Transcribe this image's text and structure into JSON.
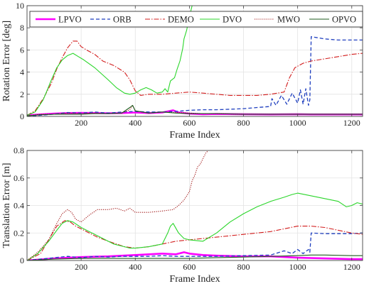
{
  "chart_data": [
    {
      "type": "line",
      "title": "",
      "xlabel": "Frame Index",
      "ylabel": "Rotation Error [deg]",
      "xlim": [
        0,
        1240
      ],
      "ylim": [
        0,
        10
      ],
      "xticks": [
        "200",
        "400",
        "600",
        "800",
        "1000",
        "1200"
      ],
      "yticks": [
        "0",
        "2",
        "4",
        "6",
        "8",
        "10"
      ],
      "grid": true,
      "legend": {
        "placement": "top",
        "entries": [
          "LPVO",
          "ORB",
          "DEMO",
          "DVO",
          "MWO",
          "OPVO"
        ]
      },
      "series": [
        {
          "name": "LPVO",
          "color": "#ff00ff",
          "dash": "solid",
          "width": 2.6,
          "x": [
            0,
            50,
            100,
            150,
            200,
            250,
            300,
            350,
            400,
            450,
            500,
            540,
            560,
            580,
            600,
            650,
            700,
            800,
            900,
            1000,
            1050,
            1100,
            1150,
            1200,
            1240
          ],
          "y": [
            0.1,
            0.18,
            0.25,
            0.3,
            0.32,
            0.3,
            0.28,
            0.3,
            0.35,
            0.3,
            0.35,
            0.55,
            0.35,
            0.3,
            0.25,
            0.2,
            0.22,
            0.2,
            0.18,
            0.2,
            0.18,
            0.18,
            0.18,
            0.18,
            0.18
          ]
        },
        {
          "name": "ORB",
          "color": "#1f3fbf",
          "dash": "5,3",
          "width": 1.3,
          "x": [
            0,
            50,
            100,
            150,
            200,
            250,
            300,
            350,
            400,
            450,
            500,
            550,
            600,
            650,
            700,
            750,
            800,
            850,
            900,
            905,
            920,
            940,
            960,
            980,
            1000,
            1010,
            1020,
            1030,
            1040,
            1045,
            1050,
            1100,
            1150,
            1200,
            1240
          ],
          "y": [
            0.0,
            0.1,
            0.2,
            0.35,
            0.3,
            0.4,
            0.3,
            0.4,
            0.45,
            0.4,
            0.4,
            0.45,
            0.55,
            0.6,
            0.6,
            0.65,
            0.7,
            0.8,
            0.9,
            1.6,
            1.0,
            1.9,
            1.1,
            2.1,
            1.2,
            2.4,
            1.1,
            2.5,
            1.0,
            1.5,
            7.2,
            7.0,
            6.9,
            6.9,
            6.9
          ]
        },
        {
          "name": "DEMO",
          "color": "#d21c1c",
          "dash": "7,2,1.5,2",
          "width": 1.1,
          "x": [
            0,
            30,
            60,
            90,
            110,
            130,
            150,
            170,
            185,
            200,
            220,
            250,
            280,
            320,
            360,
            380,
            400,
            420,
            450,
            500,
            550,
            600,
            650,
            700,
            750,
            800,
            850,
            900,
            950,
            970,
            990,
            1020,
            1050,
            1100,
            1150,
            1200,
            1240
          ],
          "y": [
            0.1,
            0.5,
            1.6,
            3.0,
            4.3,
            5.3,
            6.2,
            6.8,
            6.8,
            6.3,
            6.0,
            5.6,
            5.0,
            4.6,
            4.0,
            3.3,
            2.3,
            1.9,
            2.0,
            2.0,
            2.1,
            2.2,
            2.1,
            2.0,
            1.9,
            1.9,
            1.9,
            2.0,
            2.2,
            3.5,
            4.4,
            4.8,
            5.0,
            5.2,
            5.4,
            5.6,
            5.7
          ]
        },
        {
          "name": "DVO",
          "color": "#2bd62b",
          "dash": "solid",
          "width": 1.1,
          "x": [
            0,
            30,
            60,
            90,
            110,
            130,
            150,
            170,
            190,
            210,
            250,
            300,
            330,
            360,
            380,
            400,
            420,
            440,
            460,
            480,
            500,
            510,
            520,
            530,
            545,
            555,
            565,
            575,
            580,
            590,
            600,
            610
          ],
          "y": [
            0.1,
            0.4,
            1.5,
            3.3,
            4.4,
            5.1,
            5.5,
            5.7,
            5.4,
            5.1,
            4.4,
            3.3,
            2.6,
            2.1,
            2.0,
            2.1,
            2.4,
            2.6,
            2.4,
            2.1,
            2.2,
            2.5,
            2.2,
            3.2,
            3.5,
            4.3,
            5.0,
            6.1,
            7.0,
            7.8,
            9.0,
            10.0
          ]
        },
        {
          "name": "MWO",
          "color": "#a01515",
          "dash": "1.2,1.6",
          "width": 1.1,
          "x": [
            0,
            50,
            100,
            150,
            200,
            250,
            300,
            350,
            380,
            390,
            400,
            450,
            500,
            550,
            600,
            650,
            700,
            800,
            900,
            1000,
            1100,
            1240
          ],
          "y": [
            0.05,
            0.2,
            0.2,
            0.3,
            0.25,
            0.3,
            0.25,
            0.3,
            0.6,
            1.0,
            0.5,
            0.3,
            0.4,
            0.35,
            0.3,
            0.25,
            0.25,
            0.2,
            0.2,
            0.2,
            0.2,
            0.2
          ]
        },
        {
          "name": "OPVO",
          "color": "#1d5a1d",
          "dash": "solid",
          "width": 1.1,
          "x": [
            0,
            50,
            100,
            150,
            200,
            250,
            300,
            350,
            380,
            390,
            400,
            450,
            500,
            550,
            600,
            700,
            800,
            900,
            1000,
            1100,
            1240
          ],
          "y": [
            0.05,
            0.15,
            0.2,
            0.2,
            0.2,
            0.25,
            0.25,
            0.3,
            0.8,
            1.0,
            0.5,
            0.3,
            0.4,
            0.3,
            0.25,
            0.25,
            0.2,
            0.2,
            0.2,
            0.2,
            0.2
          ]
        }
      ]
    },
    {
      "type": "line",
      "title": "",
      "xlabel": "Frame Index",
      "ylabel": "Translation Error [m]",
      "xlim": [
        0,
        1240
      ],
      "ylim": [
        0,
        0.8
      ],
      "xticks": [
        "200",
        "400",
        "600",
        "800",
        "1000",
        "1200"
      ],
      "yticks": [
        "0",
        "0.2",
        "0.4",
        "0.6",
        "0.8"
      ],
      "grid": true,
      "series": [
        {
          "name": "LPVO",
          "color": "#ff00ff",
          "dash": "solid",
          "width": 2.6,
          "x": [
            0,
            100,
            200,
            300,
            400,
            500,
            550,
            580,
            600,
            650,
            700,
            800,
            900,
            1000,
            1100,
            1200,
            1240
          ],
          "y": [
            0.0,
            0.015,
            0.025,
            0.03,
            0.04,
            0.05,
            0.045,
            0.06,
            0.05,
            0.04,
            0.035,
            0.03,
            0.03,
            0.02,
            0.015,
            0.01,
            0.01
          ]
        },
        {
          "name": "ORB",
          "color": "#1f3fbf",
          "dash": "5,3",
          "width": 1.3,
          "x": [
            0,
            50,
            100,
            150,
            200,
            250,
            300,
            350,
            400,
            450,
            500,
            550,
            600,
            650,
            700,
            800,
            900,
            950,
            980,
            1000,
            1020,
            1040,
            1045,
            1050,
            1100,
            1150,
            1200,
            1240
          ],
          "y": [
            0.0,
            0.01,
            0.02,
            0.03,
            0.02,
            0.03,
            0.025,
            0.03,
            0.03,
            0.03,
            0.035,
            0.03,
            0.03,
            0.03,
            0.03,
            0.035,
            0.04,
            0.07,
            0.05,
            0.08,
            0.05,
            0.08,
            0.06,
            0.2,
            0.195,
            0.195,
            0.195,
            0.2
          ]
        },
        {
          "name": "DEMO",
          "color": "#d21c1c",
          "dash": "7,2,1.5,2",
          "width": 1.1,
          "x": [
            0,
            50,
            80,
            110,
            140,
            160,
            180,
            200,
            230,
            260,
            300,
            330,
            360,
            400,
            450,
            500,
            550,
            600,
            650,
            700,
            800,
            900,
            950,
            1000,
            1050,
            1100,
            1150,
            1200,
            1240
          ],
          "y": [
            0.0,
            0.05,
            0.15,
            0.25,
            0.29,
            0.28,
            0.25,
            0.23,
            0.2,
            0.17,
            0.14,
            0.12,
            0.1,
            0.09,
            0.1,
            0.12,
            0.14,
            0.15,
            0.16,
            0.17,
            0.19,
            0.21,
            0.23,
            0.25,
            0.25,
            0.24,
            0.22,
            0.2,
            0.19
          ]
        },
        {
          "name": "DVO",
          "color": "#2bd62b",
          "dash": "solid",
          "width": 1.1,
          "x": [
            0,
            40,
            80,
            110,
            130,
            150,
            170,
            200,
            240,
            280,
            320,
            360,
            380,
            400,
            450,
            500,
            520,
            530,
            540,
            560,
            580,
            600,
            650,
            700,
            750,
            800,
            850,
            900,
            950,
            980,
            1000,
            1050,
            1100,
            1150,
            1180,
            1200,
            1220,
            1240
          ],
          "y": [
            0.0,
            0.05,
            0.14,
            0.22,
            0.27,
            0.29,
            0.28,
            0.24,
            0.2,
            0.16,
            0.12,
            0.1,
            0.09,
            0.09,
            0.1,
            0.12,
            0.2,
            0.25,
            0.27,
            0.2,
            0.16,
            0.15,
            0.14,
            0.2,
            0.28,
            0.34,
            0.39,
            0.43,
            0.46,
            0.48,
            0.49,
            0.47,
            0.45,
            0.43,
            0.39,
            0.4,
            0.42,
            0.41
          ]
        },
        {
          "name": "MWO",
          "color": "#a01515",
          "dash": "1.2,1.6",
          "width": 1.1,
          "x": [
            0,
            40,
            80,
            110,
            130,
            150,
            165,
            180,
            200,
            230,
            260,
            300,
            330,
            360,
            380,
            400,
            450,
            500,
            540,
            560,
            580,
            600,
            610,
            620,
            630,
            640,
            650,
            660,
            670
          ],
          "y": [
            0.0,
            0.06,
            0.15,
            0.27,
            0.34,
            0.37,
            0.35,
            0.3,
            0.28,
            0.33,
            0.37,
            0.37,
            0.38,
            0.36,
            0.38,
            0.35,
            0.35,
            0.36,
            0.37,
            0.4,
            0.44,
            0.5,
            0.58,
            0.62,
            0.68,
            0.7,
            0.74,
            0.78,
            0.8
          ]
        },
        {
          "name": "OPVO",
          "color": "#1d5a1d",
          "dash": "solid",
          "width": 1.1,
          "x": [
            0,
            100,
            200,
            300,
            400,
            500,
            600,
            700,
            800,
            900,
            1000,
            1050,
            1100,
            1200,
            1240
          ],
          "y": [
            0.0,
            0.01,
            0.015,
            0.015,
            0.015,
            0.015,
            0.015,
            0.02,
            0.025,
            0.03,
            0.035,
            0.04,
            0.04,
            0.035,
            0.035
          ]
        }
      ]
    }
  ]
}
